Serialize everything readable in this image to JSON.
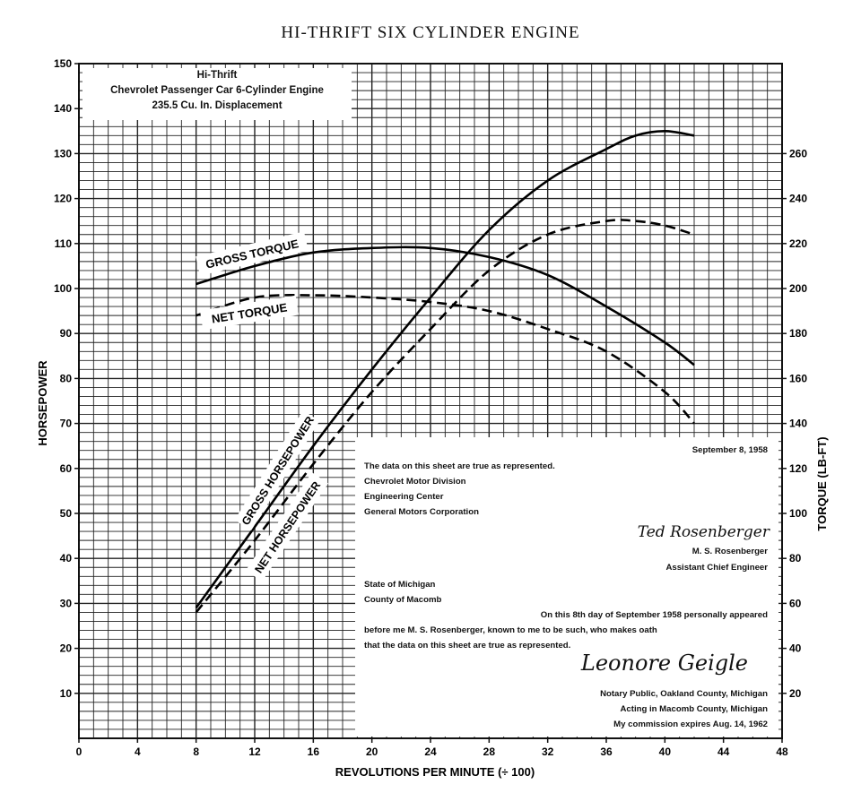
{
  "page_title": "HI-THRIFT SIX CYLINDER ENGINE",
  "title_box": {
    "line1": "Hi-Thrift",
    "line2": "Chevrolet Passenger Car 6-Cylinder Engine",
    "line3": "235.5 Cu. In. Displacement"
  },
  "certification": {
    "date": "September 8, 1958",
    "statement": "The data on this sheet are true as represented.",
    "org1": "Chevrolet Motor Division",
    "org2": "Engineering Center",
    "org3": "General Motors Corporation",
    "signer_signature": "Ted Rosenberger",
    "signer_name": "M. S. Rosenberger",
    "signer_title": "Assistant Chief Engineer",
    "state": "State of Michigan",
    "county": "County of Macomb",
    "oath1": "On this 8th day of September 1958 personally appeared",
    "oath2": "before me M. S. Rosenberger, known to me to be such, who makes oath",
    "oath3": "that the data on this sheet are true as represented.",
    "notary_signature": "Leonore Geigle",
    "notary1": "Notary Public, Oakland County, Michigan",
    "notary2": "Acting in Macomb County, Michigan",
    "notary3": "My commission expires Aug. 14, 1962"
  },
  "chart_data": {
    "type": "line",
    "xlabel": "REVOLUTIONS PER MINUTE (÷ 100)",
    "ylabel": "HORSEPOWER",
    "y2label": "TORQUE (LB-FT)",
    "xlim": [
      0,
      48
    ],
    "ylim": [
      0,
      150
    ],
    "y2lim": [
      0,
      300
    ],
    "grid": true,
    "x_ticks": [
      "0",
      "4",
      "8",
      "12",
      "16",
      "20",
      "24",
      "28",
      "32",
      "36",
      "40",
      "44",
      "48"
    ],
    "y_ticks": [
      "10",
      "20",
      "30",
      "40",
      "50",
      "60",
      "70",
      "80",
      "90",
      "100",
      "110",
      "120",
      "130",
      "140",
      "150"
    ],
    "y2_ticks": [
      "20",
      "40",
      "60",
      "80",
      "100",
      "120",
      "140",
      "160",
      "180",
      "200",
      "220",
      "240",
      "260"
    ],
    "series": [
      {
        "name": "GROSS HORSEPOWER",
        "axis": "left",
        "style": "solid",
        "x": [
          8,
          12,
          16,
          20,
          24,
          28,
          32,
          36,
          38,
          40,
          42
        ],
        "y": [
          29,
          47,
          65,
          82,
          98,
          113,
          124,
          131,
          134,
          135,
          134
        ]
      },
      {
        "name": "NET HORSEPOWER",
        "axis": "left",
        "style": "dashed",
        "x": [
          8,
          12,
          16,
          20,
          24,
          28,
          32,
          36,
          38,
          40,
          42
        ],
        "y": [
          28,
          44,
          61,
          77,
          91,
          104,
          112,
          115,
          115,
          114,
          112
        ]
      },
      {
        "name": "GROSS TORQUE",
        "axis": "right",
        "style": "solid",
        "x": [
          8,
          12,
          16,
          20,
          24,
          28,
          32,
          36,
          40,
          42
        ],
        "y": [
          202,
          210,
          216,
          218,
          218,
          214,
          206,
          192,
          176,
          166
        ]
      },
      {
        "name": "NET TORQUE",
        "axis": "right",
        "style": "dashed",
        "x": [
          8,
          12,
          16,
          20,
          24,
          28,
          32,
          36,
          40,
          42
        ],
        "y": [
          188,
          196,
          197,
          196,
          194,
          190,
          182,
          172,
          154,
          140
        ]
      }
    ]
  }
}
